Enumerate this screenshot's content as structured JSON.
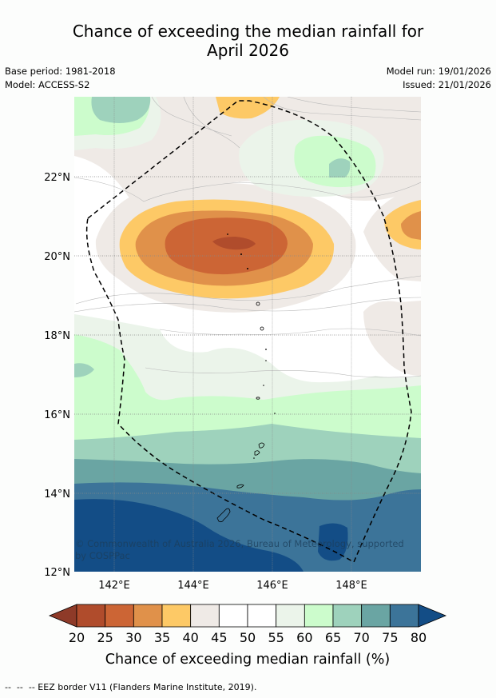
{
  "title_line1": "Chance of exceeding the median rainfall for",
  "title_line2": "April 2026",
  "meta": {
    "base_period": "Base period: 1981-2018",
    "model": "Model: ACCESS-S2",
    "model_run": "Model run: 19/01/2026",
    "issued": "Issued: 21/01/2026"
  },
  "lat_labels": [
    "22°N",
    "20°N",
    "18°N",
    "16°N",
    "14°N",
    "12°N"
  ],
  "lon_labels": [
    "142°E",
    "144°E",
    "146°E",
    "148°E"
  ],
  "copyright_line1": "© Commonwealth of Australia 2026, Bureau of Meteorology, supported",
  "copyright_line2": "by COSPPac",
  "legend": {
    "ticks": [
      "20",
      "25",
      "30",
      "35",
      "40",
      "45",
      "50",
      "55",
      "60",
      "65",
      "70",
      "75",
      "80"
    ],
    "title": "Chance of exceeding median rainfall (%)",
    "colors": {
      "below_20": "#8e3a28",
      "20_25": "#b04c2c",
      "25_30": "#cc6535",
      "30_35": "#e0914a",
      "35_40": "#fdc966",
      "40_45": "#efeae6",
      "45_50": "#ffffff",
      "50_55": "#ffffff",
      "55_60": "#ebf4ea",
      "60_65": "#ccfccc",
      "65_70": "#9ed2bc",
      "70_75": "#6aa5a3",
      "75_80": "#3c7499",
      "above_80": "#134d86"
    }
  },
  "footnote": "--  --  -- EEZ border V11 (Flanders Marine Institute, 2019)."
}
